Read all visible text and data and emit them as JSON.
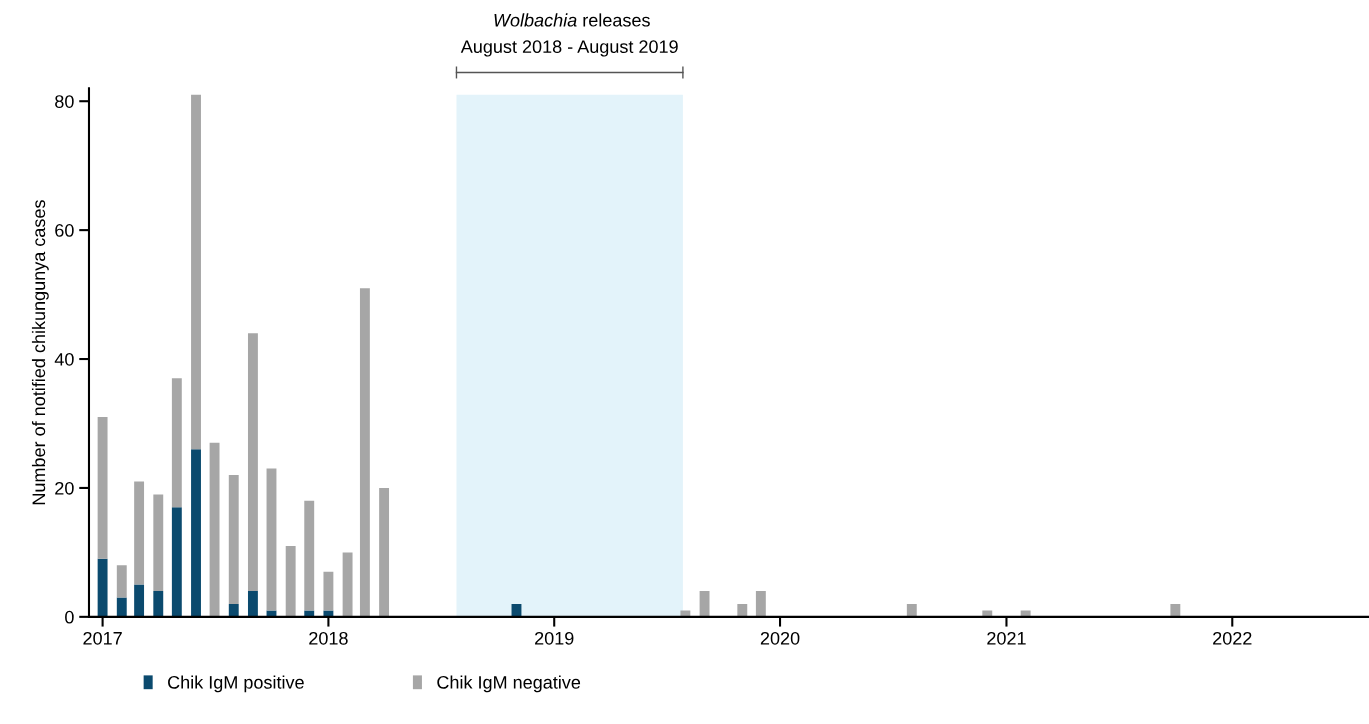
{
  "chart_data": {
    "type": "bar",
    "stacked": true,
    "ylabel": "Number of notified chikungunya cases",
    "x": [
      "2017-01",
      "2017-02",
      "2017-03",
      "2017-04",
      "2017-05",
      "2017-06",
      "2017-07",
      "2017-08",
      "2017-09",
      "2017-10",
      "2017-11",
      "2017-12",
      "2018-01",
      "2018-02",
      "2018-03",
      "2018-04",
      "2018-11",
      "2019-08",
      "2019-09",
      "2019-11",
      "2019-12",
      "2020-08",
      "2020-12",
      "2021-02",
      "2021-10"
    ],
    "series": [
      {
        "name": "Chik IgM positive",
        "color": "#0b4a6e",
        "values": [
          9,
          3,
          5,
          4,
          17,
          26,
          0,
          2,
          4,
          1,
          0,
          1,
          1,
          0,
          0,
          0,
          2,
          0,
          0,
          0,
          0,
          0,
          0,
          0,
          0
        ]
      },
      {
        "name": "Chik IgM negative",
        "color": "#a6a6a6",
        "values": [
          22,
          5,
          16,
          15,
          20,
          55,
          27,
          20,
          40,
          22,
          11,
          17,
          6,
          10,
          51,
          20,
          0,
          1,
          4,
          2,
          4,
          2,
          1,
          1,
          2
        ]
      }
    ],
    "xlim": [
      "2016-12-10",
      "2022-08-10"
    ],
    "xticks": [
      "2017",
      "2018",
      "2019",
      "2020",
      "2021",
      "2022"
    ],
    "ylim": [
      0,
      82
    ],
    "yticks": [
      0,
      20,
      40,
      60,
      80
    ],
    "bands": [
      {
        "axis": "x",
        "from": "2018-07-27",
        "to": "2019-07-28",
        "label": "Wolbachia releases\nAugust 2018 - August 2019",
        "color": "#e3f3fa"
      }
    ],
    "grid": false,
    "legend": "bottom left"
  }
}
